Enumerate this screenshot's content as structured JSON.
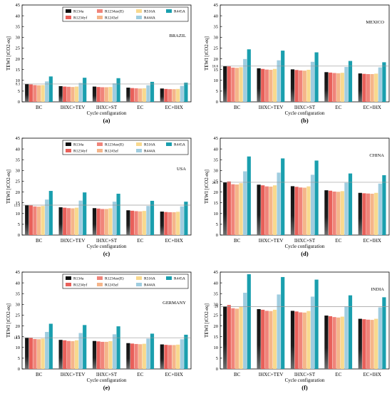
{
  "chart_data": [
    {
      "type": "bar",
      "panel_label": "(a)",
      "country": "BRAZIL",
      "ylabel": "TEWI [tCO2-eq]",
      "xlabel": "Cycle configuration",
      "ylim": [
        0,
        45
      ],
      "yticks": [
        "0",
        "5",
        "10",
        "15",
        "20",
        "25",
        "30",
        "35",
        "40",
        "45"
      ],
      "reference_value": 8.3,
      "reference_label": "8.3",
      "legend": true,
      "categories": [
        "BC",
        "IHXC+TEV",
        "IHXC+ST",
        "EC",
        "EC+IHX"
      ],
      "series": [
        {
          "name": "R134a",
          "values": [
            8.3,
            7.3,
            7.1,
            6.6,
            6.2
          ]
        },
        {
          "name": "R1234yf",
          "values": [
            8.1,
            7.1,
            6.9,
            6.4,
            6.0
          ]
        },
        {
          "name": "R1234ze(E)",
          "values": [
            7.8,
            7.0,
            6.8,
            6.3,
            5.9
          ]
        },
        {
          "name": "R1243zf",
          "values": [
            7.7,
            6.9,
            6.8,
            6.2,
            5.9
          ]
        },
        {
          "name": "R516A",
          "values": [
            7.8,
            7.1,
            6.9,
            6.3,
            6.0
          ]
        },
        {
          "name": "R444A",
          "values": [
            9.5,
            8.8,
            8.6,
            7.7,
            7.4
          ]
        },
        {
          "name": "R445A",
          "values": [
            11.8,
            11.2,
            11.0,
            9.3,
            8.9
          ]
        }
      ]
    },
    {
      "type": "bar",
      "panel_label": "(b)",
      "country": "MEXICO",
      "ylabel": "TEWI [tCO2-eq]",
      "xlabel": "Cycle configuration",
      "ylim": [
        0,
        45
      ],
      "yticks": [
        "0",
        "5",
        "10",
        "15",
        "20",
        "25",
        "30",
        "35",
        "40",
        "45"
      ],
      "reference_value": 16.6,
      "reference_label": "16.6",
      "legend": false,
      "categories": [
        "BC",
        "IHXC+TEV",
        "IHXC+ST",
        "EC",
        "EC+IHX"
      ],
      "series": [
        {
          "name": "R134a",
          "values": [
            16.6,
            15.6,
            15.1,
            13.8,
            13.2
          ]
        },
        {
          "name": "R1234yf",
          "values": [
            16.5,
            15.3,
            14.8,
            13.6,
            13.0
          ]
        },
        {
          "name": "R1234ze(E)",
          "values": [
            15.9,
            15.0,
            14.6,
            13.4,
            12.9
          ]
        },
        {
          "name": "R1243zf",
          "values": [
            15.8,
            14.9,
            14.5,
            13.3,
            12.9
          ]
        },
        {
          "name": "R516A",
          "values": [
            16.1,
            15.3,
            14.9,
            13.5,
            13.1
          ]
        },
        {
          "name": "R444A",
          "values": [
            19.9,
            19.3,
            18.6,
            16.2,
            16.0
          ]
        },
        {
          "name": "R445A",
          "values": [
            24.4,
            23.8,
            23.0,
            19.0,
            18.4
          ]
        }
      ]
    },
    {
      "type": "bar",
      "panel_label": "(c)",
      "country": "USA",
      "ylabel": "TEWI [tCO2-eq]",
      "xlabel": "Cycle configuration",
      "ylim": [
        0,
        45
      ],
      "yticks": [
        "0",
        "5",
        "10",
        "15",
        "20",
        "25",
        "30",
        "35",
        "40",
        "45"
      ],
      "reference_value": 13.9,
      "reference_label": "13.9",
      "legend": true,
      "categories": [
        "BC",
        "IHXC+TEV",
        "IHXC+ST",
        "EC",
        "EC+IHX"
      ],
      "series": [
        {
          "name": "R134a",
          "values": [
            13.9,
            12.9,
            12.5,
            11.5,
            10.9
          ]
        },
        {
          "name": "R1234yf",
          "values": [
            13.8,
            12.7,
            12.3,
            11.3,
            10.7
          ]
        },
        {
          "name": "R1234ze(E)",
          "values": [
            13.3,
            12.5,
            12.1,
            11.1,
            10.6
          ]
        },
        {
          "name": "R1243zf",
          "values": [
            13.2,
            12.4,
            12.1,
            11.0,
            10.6
          ]
        },
        {
          "name": "R516A",
          "values": [
            13.5,
            12.7,
            12.4,
            11.2,
            10.8
          ]
        },
        {
          "name": "R444A",
          "values": [
            16.5,
            16.0,
            15.5,
            13.5,
            13.3
          ]
        },
        {
          "name": "R445A",
          "values": [
            20.5,
            19.8,
            19.2,
            15.9,
            15.5
          ]
        }
      ]
    },
    {
      "type": "bar",
      "panel_label": "(d)",
      "country": "CHINA",
      "ylabel": "TEWI [tCO2-eq]",
      "xlabel": "Cycle configuration",
      "ylim": [
        0,
        45
      ],
      "yticks": [
        "0",
        "5",
        "10",
        "15",
        "20",
        "25",
        "30",
        "35",
        "40",
        "45"
      ],
      "reference_value": 24.5,
      "reference_label": "24.5",
      "legend": false,
      "categories": [
        "BC",
        "IHXC+TEV",
        "IHXC+ST",
        "EC",
        "EC+IHX"
      ],
      "series": [
        {
          "name": "R134a",
          "values": [
            24.5,
            23.4,
            22.7,
            20.8,
            19.6
          ]
        },
        {
          "name": "R1234yf",
          "values": [
            24.9,
            23.1,
            22.4,
            20.6,
            19.4
          ]
        },
        {
          "name": "R1234ze(E)",
          "values": [
            23.6,
            22.6,
            22.1,
            20.2,
            19.3
          ]
        },
        {
          "name": "R1243zf",
          "values": [
            23.5,
            22.5,
            22.0,
            20.1,
            19.2
          ]
        },
        {
          "name": "R516A",
          "values": [
            24.1,
            23.1,
            22.6,
            20.4,
            19.6
          ]
        },
        {
          "name": "R444A",
          "values": [
            29.6,
            29.0,
            28.0,
            24.3,
            23.9
          ]
        },
        {
          "name": "R445A",
          "values": [
            36.5,
            35.6,
            34.6,
            28.6,
            27.8
          ]
        }
      ]
    },
    {
      "type": "bar",
      "panel_label": "(e)",
      "country": "GERMANY",
      "ylabel": "TEWI [tCO2-eq]",
      "xlabel": "Cycle configuration",
      "ylim": [
        0,
        45
      ],
      "yticks": [
        "0",
        "5",
        "10",
        "15",
        "20",
        "25",
        "30",
        "35",
        "40",
        "45"
      ],
      "reference_value": 14.5,
      "reference_label": "14.5",
      "legend": true,
      "categories": [
        "BC",
        "IHXC+TEV",
        "IHXC+ST",
        "EC",
        "EC+IHX"
      ],
      "series": [
        {
          "name": "R134a",
          "values": [
            14.5,
            13.5,
            13.0,
            12.0,
            11.4
          ]
        },
        {
          "name": "R1234yf",
          "values": [
            14.4,
            13.3,
            12.8,
            11.8,
            11.2
          ]
        },
        {
          "name": "R1234ze(E)",
          "values": [
            13.9,
            13.0,
            12.6,
            11.6,
            11.1
          ]
        },
        {
          "name": "R1243zf",
          "values": [
            13.8,
            12.9,
            12.6,
            11.5,
            11.1
          ]
        },
        {
          "name": "R516A",
          "values": [
            14.1,
            13.3,
            12.9,
            11.7,
            11.3
          ]
        },
        {
          "name": "R444A",
          "values": [
            17.2,
            16.7,
            16.1,
            14.1,
            13.8
          ]
        },
        {
          "name": "R445A",
          "values": [
            21.0,
            20.4,
            19.8,
            16.4,
            15.9
          ]
        }
      ]
    },
    {
      "type": "bar",
      "panel_label": "(f)",
      "country": "INDIA",
      "ylabel": "TEWI [tCO2-eq]",
      "xlabel": "Cycle configuration",
      "ylim": [
        0,
        45
      ],
      "yticks": [
        "0",
        "5",
        "10",
        "15",
        "20",
        "25",
        "30",
        "35",
        "40",
        "45"
      ],
      "reference_value": 29,
      "reference_label": "29",
      "legend": false,
      "categories": [
        "BC",
        "IHXC+TEV",
        "IHXC+ST",
        "EC",
        "EC+IHX"
      ],
      "series": [
        {
          "name": "R134a",
          "values": [
            29.0,
            27.8,
            27.0,
            24.8,
            23.3
          ]
        },
        {
          "name": "R1234yf",
          "values": [
            29.7,
            27.5,
            26.7,
            24.5,
            23.1
          ]
        },
        {
          "name": "R1234ze(E)",
          "values": [
            28.2,
            27.0,
            26.3,
            24.1,
            22.9
          ]
        },
        {
          "name": "R1243zf",
          "values": [
            28.0,
            26.9,
            26.2,
            23.9,
            22.8
          ]
        },
        {
          "name": "R516A",
          "values": [
            28.8,
            27.5,
            26.9,
            24.3,
            23.3
          ]
        },
        {
          "name": "R444A",
          "values": [
            35.4,
            34.6,
            33.6,
            29.1,
            28.6
          ]
        },
        {
          "name": "R445A",
          "values": [
            44.0,
            42.7,
            41.5,
            34.2,
            33.3
          ]
        }
      ]
    }
  ],
  "colors": {
    "R134a": "#1a1a1a",
    "R1234yf": "#e8605a",
    "R1234ze(E)": "#f0847a",
    "R1243zf": "#f5b58a",
    "R516A": "#f8d98e",
    "R444A": "#9fcde0",
    "R445A": "#1a9fae",
    "reference_line": "#9a9a9a"
  }
}
